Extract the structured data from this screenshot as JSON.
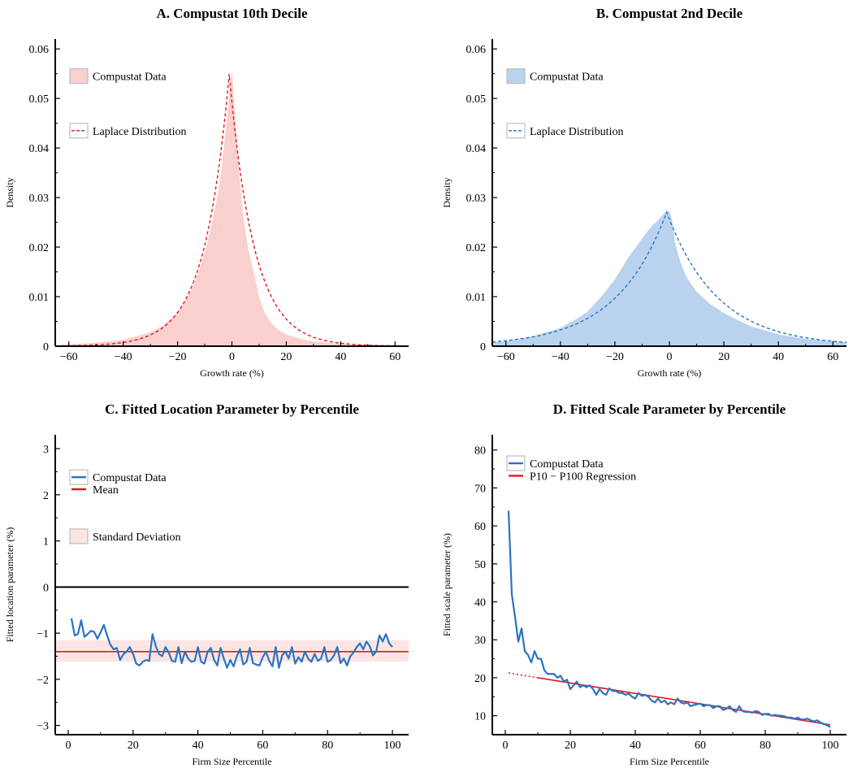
{
  "chart_data": [
    {
      "panel": "A",
      "type": "area",
      "title": "A.  Compustat 10th Decile",
      "xlabel": "Growth rate (%)",
      "ylabel": "Density",
      "xlim": [
        -65,
        65
      ],
      "ylim": [
        0,
        0.062
      ],
      "xticks": [
        -60,
        -40,
        -20,
        0,
        20,
        40,
        60
      ],
      "yticks": [
        0,
        0.01,
        0.02,
        0.03,
        0.04,
        0.05,
        0.06
      ],
      "legend_position": "top-left",
      "colors": {
        "fill": "#f9d0ce",
        "line": "#e3171b"
      },
      "series": [
        {
          "name": "Compustat Data",
          "kind": "area",
          "x": [
            -65,
            -60,
            -50,
            -40,
            -30,
            -25,
            -20,
            -15,
            -12,
            -10,
            -8,
            -6,
            -5,
            -4,
            -3,
            -2,
            -1,
            0,
            1,
            2,
            3,
            4,
            5,
            6,
            8,
            10,
            12,
            14,
            16,
            18,
            20,
            22,
            25,
            30,
            35,
            40,
            50,
            60,
            65
          ],
          "y": [
            0.0002,
            0.0004,
            0.0007,
            0.0013,
            0.0028,
            0.0043,
            0.0068,
            0.0112,
            0.0155,
            0.019,
            0.0232,
            0.0285,
            0.0315,
            0.035,
            0.04,
            0.045,
            0.051,
            0.0557,
            0.048,
            0.04,
            0.033,
            0.027,
            0.023,
            0.0195,
            0.015,
            0.01,
            0.0068,
            0.005,
            0.0038,
            0.003,
            0.0024,
            0.002,
            0.0015,
            0.001,
            0.0007,
            0.0005,
            0.0003,
            0.0002,
            0.0001
          ]
        },
        {
          "name": "Laplace Distribution",
          "kind": "line-dashed",
          "location": -1,
          "scale": 9.1
        }
      ]
    },
    {
      "panel": "B",
      "type": "area",
      "title": "B.  Compustat 2nd Decile",
      "xlabel": "Growth rate (%)",
      "ylabel": "Density",
      "xlim": [
        -65,
        65
      ],
      "ylim": [
        0,
        0.062
      ],
      "xticks": [
        -60,
        -40,
        -20,
        0,
        20,
        40,
        60
      ],
      "yticks": [
        0,
        0.01,
        0.02,
        0.03,
        0.04,
        0.05,
        0.06
      ],
      "legend_position": "top-left",
      "colors": {
        "fill": "#b9d3ee",
        "line": "#2b73c2"
      },
      "series": [
        {
          "name": "Compustat Data",
          "kind": "area",
          "x": [
            -65,
            -60,
            -50,
            -40,
            -35,
            -30,
            -25,
            -20,
            -15,
            -12,
            -10,
            -8,
            -6,
            -4,
            -2,
            -1,
            0,
            1,
            2,
            4,
            6,
            8,
            10,
            15,
            20,
            25,
            30,
            40,
            50,
            60,
            65
          ],
          "y": [
            0.0008,
            0.001,
            0.002,
            0.0037,
            0.0052,
            0.007,
            0.01,
            0.0135,
            0.018,
            0.0202,
            0.0218,
            0.0232,
            0.0245,
            0.0255,
            0.0268,
            0.0273,
            0.0272,
            0.0255,
            0.021,
            0.017,
            0.0143,
            0.0125,
            0.011,
            0.0085,
            0.0067,
            0.0053,
            0.004,
            0.0024,
            0.0015,
            0.001,
            0.0008
          ]
        },
        {
          "name": "Laplace Distribution",
          "kind": "line-dashed",
          "location": -1,
          "scale": 18.5
        }
      ]
    },
    {
      "panel": "C",
      "type": "line",
      "title": "C.  Fitted Location Parameter by Percentile",
      "xlabel": "Firm Size Percentile",
      "ylabel": "Fitted location parameter (%)",
      "xlim": [
        -4,
        105
      ],
      "ylim": [
        -3.2,
        3.3
      ],
      "xticks": [
        0,
        20,
        40,
        60,
        80,
        100
      ],
      "yticks": [
        -3,
        -2,
        -1,
        0,
        1,
        2,
        3
      ],
      "legend_position": "top-left",
      "colors": {
        "data": "#2b73c2",
        "mean": "#e3171b",
        "band": "#fbe5e4",
        "zero": "#000000"
      },
      "series": [
        {
          "name": "Compustat Data",
          "kind": "line",
          "x": [
            1,
            2,
            3,
            4,
            5,
            6,
            7,
            8,
            9,
            10,
            11,
            12,
            13,
            14,
            15,
            16,
            17,
            18,
            19,
            20,
            21,
            22,
            23,
            24,
            25,
            26,
            27,
            28,
            29,
            30,
            31,
            32,
            33,
            34,
            35,
            36,
            37,
            38,
            39,
            40,
            41,
            42,
            43,
            44,
            45,
            46,
            47,
            48,
            49,
            50,
            51,
            52,
            53,
            54,
            55,
            56,
            57,
            58,
            59,
            60,
            61,
            62,
            63,
            64,
            65,
            66,
            67,
            68,
            69,
            70,
            71,
            72,
            73,
            74,
            75,
            76,
            77,
            78,
            79,
            80,
            81,
            82,
            83,
            84,
            85,
            86,
            87,
            88,
            89,
            90,
            91,
            92,
            93,
            94,
            95,
            96,
            97,
            98,
            99,
            100
          ],
          "y": [
            -0.68,
            -1.05,
            -1.02,
            -0.72,
            -1.08,
            -1.02,
            -0.95,
            -0.97,
            -1.12,
            -0.98,
            -0.82,
            -1.05,
            -1.25,
            -1.35,
            -1.32,
            -1.58,
            -1.46,
            -1.4,
            -1.3,
            -1.45,
            -1.66,
            -1.7,
            -1.62,
            -1.58,
            -1.6,
            -1.02,
            -1.28,
            -1.45,
            -1.5,
            -1.3,
            -1.42,
            -1.6,
            -1.62,
            -1.3,
            -1.65,
            -1.4,
            -1.55,
            -1.62,
            -1.6,
            -1.3,
            -1.62,
            -1.66,
            -1.4,
            -1.32,
            -1.58,
            -1.7,
            -1.32,
            -1.55,
            -1.75,
            -1.58,
            -1.72,
            -1.5,
            -1.35,
            -1.68,
            -1.62,
            -1.32,
            -1.65,
            -1.68,
            -1.7,
            -1.52,
            -1.4,
            -1.6,
            -1.72,
            -1.3,
            -1.75,
            -1.48,
            -1.4,
            -1.55,
            -1.3,
            -1.66,
            -1.52,
            -1.62,
            -1.4,
            -1.55,
            -1.62,
            -1.45,
            -1.6,
            -1.55,
            -1.3,
            -1.62,
            -1.58,
            -1.48,
            -1.3,
            -1.65,
            -1.55,
            -1.7,
            -1.5,
            -1.42,
            -1.3,
            -1.22,
            -1.35,
            -1.18,
            -1.28,
            -1.48,
            -1.4,
            -1.05,
            -1.18,
            -1.02,
            -1.22,
            -1.3
          ],
          "mean": -1.4,
          "band": [
            -1.62,
            -1.15
          ]
        },
        {
          "name": "Mean",
          "kind": "hline",
          "value": -1.4
        },
        {
          "name": "Standard Deviation",
          "kind": "band",
          "range": [
            -1.62,
            -1.15
          ]
        }
      ]
    },
    {
      "panel": "D",
      "type": "line",
      "title": "D.  Fitted Scale Parameter by Percentile",
      "xlabel": "Firm Size Percentile",
      "ylabel": "Fitted scale parameter (%)",
      "xlim": [
        -4,
        105
      ],
      "ylim": [
        5,
        84
      ],
      "xticks": [
        0,
        20,
        40,
        60,
        80,
        100
      ],
      "yticks": [
        10,
        20,
        30,
        40,
        50,
        60,
        70,
        80
      ],
      "legend_position": "top-left",
      "colors": {
        "data": "#2b73c2",
        "regression": "#e3171b"
      },
      "series": [
        {
          "name": "Compustat Data",
          "kind": "line",
          "x": [
            1,
            2,
            3,
            4,
            5,
            6,
            7,
            8,
            9,
            10,
            11,
            12,
            13,
            14,
            15,
            16,
            17,
            18,
            19,
            20,
            21,
            22,
            23,
            24,
            25,
            26,
            27,
            28,
            29,
            30,
            31,
            32,
            33,
            34,
            35,
            36,
            37,
            38,
            39,
            40,
            41,
            42,
            43,
            44,
            45,
            46,
            47,
            48,
            49,
            50,
            51,
            52,
            53,
            54,
            55,
            56,
            57,
            58,
            59,
            60,
            61,
            62,
            63,
            64,
            65,
            66,
            67,
            68,
            69,
            70,
            71,
            72,
            73,
            74,
            75,
            76,
            77,
            78,
            79,
            80,
            81,
            82,
            83,
            84,
            85,
            86,
            87,
            88,
            89,
            90,
            91,
            92,
            93,
            94,
            95,
            96,
            97,
            98,
            99,
            100
          ],
          "y": [
            64,
            42,
            36,
            29.5,
            33,
            27,
            26,
            24,
            27,
            25,
            25,
            22,
            21,
            21,
            21,
            20,
            20.5,
            19,
            19.5,
            17,
            18,
            19,
            17.5,
            18,
            17.5,
            18,
            17,
            15.5,
            17,
            16,
            15.5,
            17.2,
            16.5,
            16.5,
            16,
            16,
            15.5,
            15.8,
            15,
            14.5,
            16,
            15.2,
            15.5,
            15,
            14,
            13.5,
            14.5,
            13.5,
            14,
            13,
            13.5,
            13,
            14.5,
            13.5,
            13.2,
            13.5,
            12.5,
            12.8,
            13,
            13.2,
            12.5,
            12.8,
            12.8,
            12,
            12.5,
            12.5,
            11.5,
            11.8,
            12.5,
            11.5,
            11,
            12.5,
            11.2,
            11,
            11,
            10.8,
            11.2,
            11,
            10.2,
            10.5,
            10.5,
            10,
            10.2,
            10,
            10,
            9.8,
            9.5,
            9.5,
            9.2,
            9.5,
            9,
            9,
            9.2,
            8.8,
            8.5,
            8.8,
            8.2,
            7.8,
            7.5,
            7
          ]
        },
        {
          "name": "P10 − P100 Regression",
          "kind": "regression",
          "x0": 10,
          "x1": 100,
          "y0": 20,
          "y1": 7.6,
          "extrapolate_from": 1
        }
      ]
    }
  ]
}
